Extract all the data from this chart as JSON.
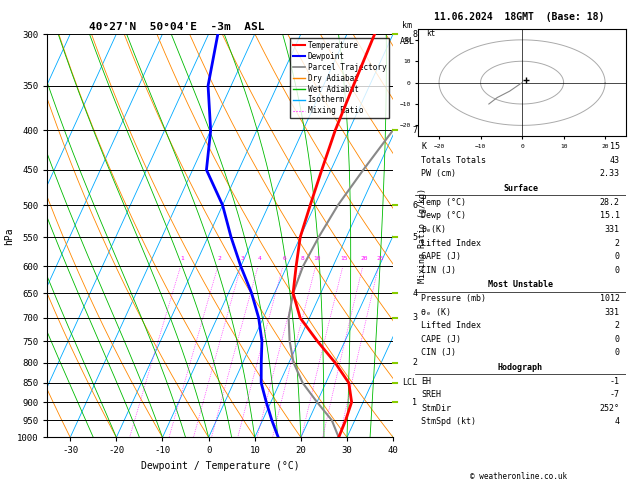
{
  "title_skewt": "40°27'N  50°04'E  -3m  ASL",
  "date_title": "11.06.2024  18GMT  (Base: 18)",
  "xlabel": "Dewpoint / Temperature (°C)",
  "ylabel_left": "hPa",
  "pressure_levels": [
    300,
    350,
    400,
    450,
    500,
    550,
    600,
    650,
    700,
    750,
    800,
    850,
    900,
    950,
    1000
  ],
  "temp_x": [
    28.2,
    28.0,
    27.5,
    25.0,
    20.0,
    14.0,
    8.0,
    4.0,
    2.0,
    0.0,
    -1.0,
    -2.0,
    -3.0,
    -3.5,
    -4.0
  ],
  "temp_p": [
    1000,
    950,
    900,
    850,
    800,
    750,
    700,
    650,
    600,
    550,
    500,
    450,
    400,
    350,
    300
  ],
  "dewp_x": [
    15.1,
    12.0,
    9.0,
    6.0,
    4.0,
    2.0,
    -1.0,
    -5.0,
    -10.0,
    -15.0,
    -20.0,
    -27.0,
    -30.0,
    -35.0,
    -38.0
  ],
  "dewp_p": [
    1000,
    950,
    900,
    850,
    800,
    750,
    700,
    650,
    600,
    550,
    500,
    450,
    400,
    350,
    300
  ],
  "parcel_x": [
    28.2,
    25.0,
    20.0,
    15.0,
    11.0,
    8.0,
    5.5,
    4.0,
    3.5,
    4.0,
    5.0,
    7.0,
    9.5,
    12.5,
    16.0
  ],
  "parcel_p": [
    1000,
    950,
    900,
    850,
    800,
    750,
    700,
    650,
    600,
    550,
    500,
    450,
    400,
    350,
    300
  ],
  "temp_color": "#ff0000",
  "dewp_color": "#0000ff",
  "parcel_color": "#888888",
  "dry_adiabat_color": "#ff8800",
  "wet_adiabat_color": "#00bb00",
  "isotherm_color": "#00aaff",
  "mixing_ratio_color": "#ff00ff",
  "background_color": "#ffffff",
  "km_ticks": [
    [
      300,
      "8"
    ],
    [
      400,
      "7"
    ],
    [
      500,
      "6"
    ],
    [
      550,
      "5"
    ],
    [
      650,
      "4"
    ],
    [
      700,
      "3"
    ],
    [
      800,
      "2"
    ],
    [
      850,
      "LCL"
    ],
    [
      900,
      "1"
    ]
  ],
  "mixing_ratio_vals": [
    1,
    2,
    3,
    4,
    6,
    8,
    10,
    15,
    20,
    25
  ],
  "xlim": [
    -35,
    40
  ],
  "skew_slope": 40,
  "stats": {
    "K": 15,
    "Totals_Totals": 43,
    "PW_cm": 2.33,
    "Surface_Temp": 28.2,
    "Surface_Dewp": 15.1,
    "Surface_theta_e": 331,
    "Surface_LI": 2,
    "Surface_CAPE": 0,
    "Surface_CIN": 0,
    "MU_Pressure": 1012,
    "MU_theta_e": 331,
    "MU_LI": 2,
    "MU_CAPE": 0,
    "MU_CIN": 0,
    "EH": -1,
    "SREH": -7,
    "StmDir": 252,
    "StmSpd": 4
  }
}
